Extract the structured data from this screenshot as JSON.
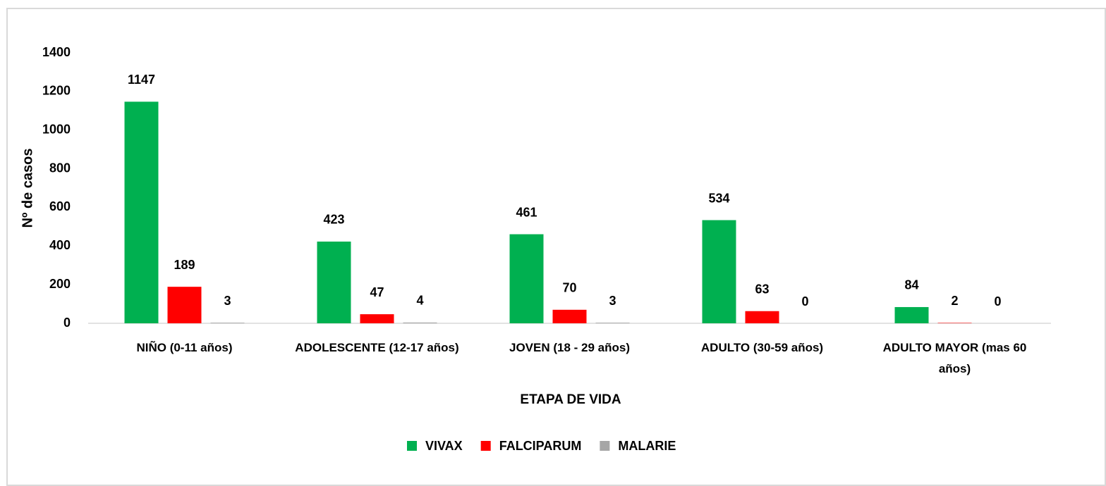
{
  "chart_data": {
    "type": "bar",
    "x_label": "ETAPA DE VIDA",
    "y_label": "Nº de casos",
    "categories": [
      "NIÑO (0-11 años)",
      "ADOLESCENTE (12-17 años)",
      "JOVEN (18 - 29 años)",
      "ADULTO (30-59 años)",
      "ADULTO MAYOR (mas 60 años)"
    ],
    "series": [
      {
        "name": "VIVAX",
        "color": "#00b050",
        "values": [
          1147,
          423,
          461,
          534,
          84
        ]
      },
      {
        "name": "FALCIPARUM",
        "color": "#ff0000",
        "values": [
          189,
          47,
          70,
          63,
          2
        ]
      },
      {
        "name": "MALARIE",
        "color": "#a6a6a6",
        "values": [
          3,
          4,
          3,
          0,
          0
        ]
      }
    ],
    "ylim": [
      0,
      1400
    ],
    "yticks": [
      0,
      200,
      400,
      600,
      800,
      1000,
      1200,
      1400
    ],
    "grid": false,
    "legend": "bottom"
  }
}
